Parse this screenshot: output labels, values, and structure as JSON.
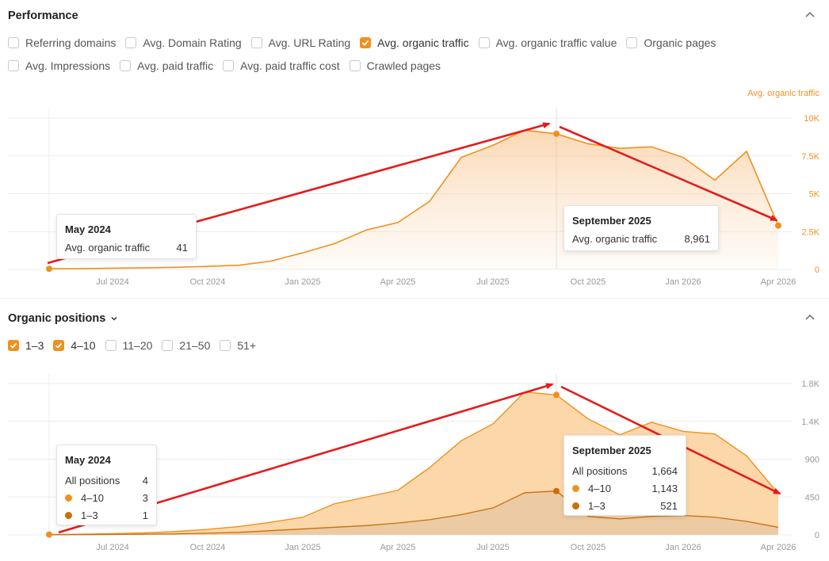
{
  "colors": {
    "accent": "#f0901e",
    "accent_dark": "#c8700a",
    "annotation_arrow": "#e51b1b",
    "grid": "#ececec"
  },
  "performance": {
    "title": "Performance",
    "metrics_row1": [
      {
        "label": "Referring domains",
        "checked": false
      },
      {
        "label": "Avg. Domain Rating",
        "checked": false
      },
      {
        "label": "Avg. URL Rating",
        "checked": false
      },
      {
        "label": "Avg. organic traffic",
        "checked": true
      },
      {
        "label": "Avg. organic traffic value",
        "checked": false
      },
      {
        "label": "Organic pages",
        "checked": false
      }
    ],
    "metrics_row2": [
      {
        "label": "Avg. Impressions",
        "checked": false
      },
      {
        "label": "Avg. paid traffic",
        "checked": false
      },
      {
        "label": "Avg. paid traffic cost",
        "checked": false
      },
      {
        "label": "Crawled pages",
        "checked": false
      }
    ],
    "series_label": "Avg. organic traffic",
    "tooltip_left": {
      "title": "May 2024",
      "label": "Avg. organic traffic",
      "value": "41"
    },
    "tooltip_right": {
      "title": "September 2025",
      "label": "Avg. organic traffic",
      "value": "8,961"
    }
  },
  "positions": {
    "title": "Organic positions",
    "filters": [
      {
        "label": "1–3",
        "checked": true
      },
      {
        "label": "4–10",
        "checked": true
      },
      {
        "label": "11–20",
        "checked": false
      },
      {
        "label": "21–50",
        "checked": false
      },
      {
        "label": "51+",
        "checked": false
      }
    ],
    "tooltip_left": {
      "title": "May 2024",
      "rows": [
        {
          "label": "All positions",
          "value": "4",
          "dot": ""
        },
        {
          "label": "4–10",
          "value": "3",
          "dot": "#f0901e"
        },
        {
          "label": "1–3",
          "value": "1",
          "dot": "#c8700a"
        }
      ]
    },
    "tooltip_right": {
      "title": "September 2025",
      "rows": [
        {
          "label": "All positions",
          "value": "1,664",
          "dot": ""
        },
        {
          "label": "4–10",
          "value": "1,143",
          "dot": "#f0901e"
        },
        {
          "label": "1–3",
          "value": "521",
          "dot": "#c8700a"
        }
      ]
    }
  },
  "chart_data": [
    {
      "type": "area",
      "title": "Performance",
      "x_tick_labels": [
        "Jul 2024",
        "Oct 2024",
        "Jan 2025",
        "Apr 2025",
        "Jul 2025",
        "Oct 2025",
        "Jan 2026",
        "Apr 2026"
      ],
      "y_tick_labels": [
        "0",
        "2.5K",
        "5K",
        "7.5K",
        "10K"
      ],
      "ylim": [
        0,
        10000
      ],
      "y_axis_position": "right",
      "x": [
        "May 2024",
        "Jun 2024",
        "Jul 2024",
        "Aug 2024",
        "Sep 2024",
        "Oct 2024",
        "Nov 2024",
        "Dec 2024",
        "Jan 2025",
        "Feb 2025",
        "Mar 2025",
        "Apr 2025",
        "May 2025",
        "Jun 2025",
        "Jul 2025",
        "Aug 2025",
        "Sep 2025",
        "Oct 2025",
        "Nov 2025",
        "Dec 2025",
        "Jan 2026",
        "Feb 2026",
        "Mar 2026",
        "Apr 2026"
      ],
      "series": [
        {
          "name": "Avg. organic traffic",
          "values": [
            41,
            50,
            80,
            100,
            140,
            200,
            280,
            550,
            1100,
            1700,
            2600,
            3100,
            4500,
            7400,
            8200,
            9200,
            8961,
            8300,
            8000,
            8100,
            7400,
            5900,
            7800,
            2900
          ]
        }
      ]
    },
    {
      "type": "area",
      "title": "Organic positions",
      "x_tick_labels": [
        "Jul 2024",
        "Oct 2024",
        "Jan 2025",
        "Apr 2025",
        "Jul 2025",
        "Oct 2025",
        "Jan 2026",
        "Apr 2026"
      ],
      "y_tick_labels": [
        "0",
        "450",
        "900",
        "1.4K",
        "1.8K"
      ],
      "ylim": [
        0,
        1800
      ],
      "y_axis_position": "right",
      "stacked": true,
      "x": [
        "May 2024",
        "Jun 2024",
        "Jul 2024",
        "Aug 2024",
        "Sep 2024",
        "Oct 2024",
        "Nov 2024",
        "Dec 2024",
        "Jan 2025",
        "Feb 2025",
        "Mar 2025",
        "Apr 2025",
        "May 2025",
        "Jun 2025",
        "Jul 2025",
        "Aug 2025",
        "Sep 2025",
        "Oct 2025",
        "Nov 2025",
        "Dec 2025",
        "Jan 2026",
        "Feb 2026",
        "Mar 2026",
        "Apr 2026"
      ],
      "series": [
        {
          "name": "1–3",
          "values": [
            1,
            3,
            5,
            8,
            12,
            20,
            30,
            50,
            70,
            90,
            110,
            140,
            180,
            240,
            320,
            500,
            521,
            220,
            190,
            220,
            230,
            210,
            160,
            90
          ]
        },
        {
          "name": "4–10",
          "values": [
            3,
            5,
            10,
            15,
            28,
            45,
            70,
            100,
            140,
            280,
            340,
            390,
            620,
            880,
            1000,
            1200,
            1143,
            1160,
            1000,
            1120,
            1000,
            990,
            780,
            400
          ]
        }
      ]
    }
  ]
}
